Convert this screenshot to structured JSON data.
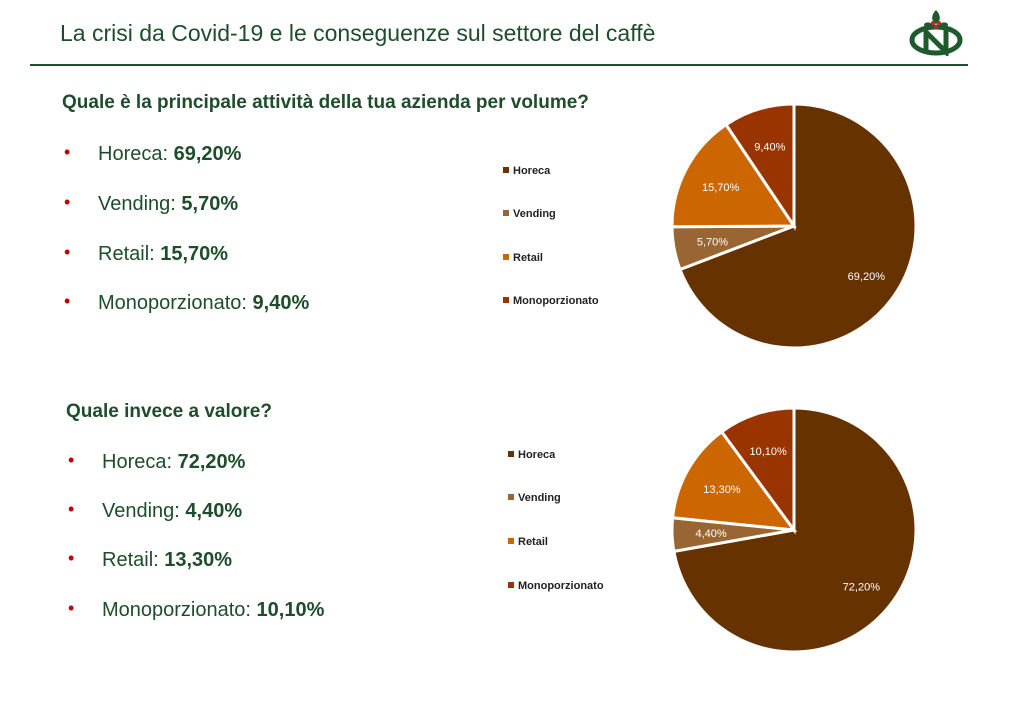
{
  "header": {
    "title": "La crisi da Covid-19 e le conseguenze sul settore del caffè"
  },
  "sections": [
    {
      "question": "Quale è la principale attività della tua azienda per volume?",
      "bullets": [
        {
          "label": "Horeca: ",
          "value": "69,20%"
        },
        {
          "label": "Vending: ",
          "value": "5,70%"
        },
        {
          "label": "Retail: ",
          "value": "15,70%"
        },
        {
          "label": "Monoporzionato: ",
          "value": "9,40%"
        }
      ]
    },
    {
      "question": "Quale invece a valore?",
      "bullets": [
        {
          "label": "Horeca: ",
          "value": "72,20%"
        },
        {
          "label": "Vending: ",
          "value": "4,40%"
        },
        {
          "label": "Retail: ",
          "value": "13,30%"
        },
        {
          "label": "Monoporzionato: ",
          "value": "10,10%"
        }
      ]
    }
  ],
  "chart_data": [
    {
      "type": "pie",
      "categories": [
        "Horeca",
        "Vending",
        "Retail",
        "Monoporzionato"
      ],
      "values": [
        69.2,
        5.7,
        15.7,
        9.4
      ],
      "data_labels": [
        "69,20%",
        "5,70%",
        "15,70%",
        "9,40%"
      ],
      "colors": [
        "#663300",
        "#996633",
        "#cc6600",
        "#993300"
      ],
      "legend": "left"
    },
    {
      "type": "pie",
      "categories": [
        "Horeca",
        "Vending",
        "Retail",
        "Monoporzionato"
      ],
      "values": [
        72.2,
        4.4,
        13.3,
        10.1
      ],
      "data_labels": [
        "72,20%",
        "4,40%",
        "13,30%",
        "10,10%"
      ],
      "colors": [
        "#663300",
        "#996633",
        "#cc6600",
        "#993300"
      ],
      "legend": "left"
    }
  ],
  "colors": {
    "accent": "#1e4d2b",
    "bullet": "#c00000"
  },
  "logo": {
    "icon": "coffee-plant-n-logo"
  }
}
